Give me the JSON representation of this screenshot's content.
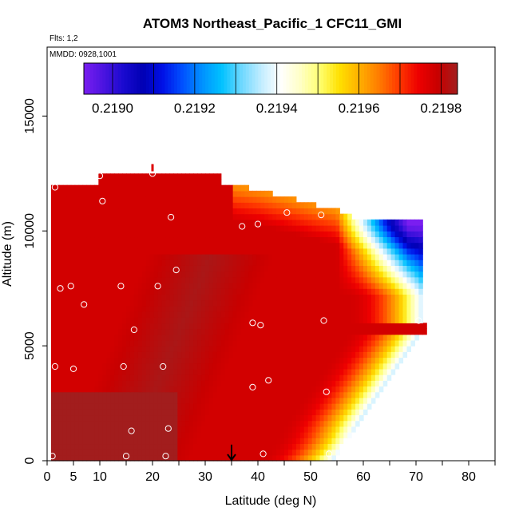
{
  "chart_data": {
    "type": "heatmap",
    "title": "ATOM3 Northeast_Pacific_1 CFC11_GMI",
    "flights_label": "Flts: 1,2",
    "dates_label": "MMDD: 0928,1001",
    "xlabel": "Latitude (deg N)",
    "ylabel": "Altitude (m)",
    "xlim": [
      0,
      85
    ],
    "ylim": [
      0,
      18000
    ],
    "x_ticks": [
      0,
      5,
      10,
      20,
      30,
      40,
      50,
      60,
      70,
      80
    ],
    "x_minor_ticks": [
      15,
      25,
      35,
      45,
      55,
      65,
      75,
      85
    ],
    "y_ticks": [
      0,
      5000,
      10000,
      15000
    ],
    "colorbar": {
      "min": 0.21893,
      "max": 0.21984,
      "tick_values": [
        0.219,
        0.2192,
        0.2194,
        0.2196,
        0.2198
      ],
      "tick_labels": [
        "0.2190",
        "0.2192",
        "0.2194",
        "0.2196",
        "0.2198"
      ],
      "colors": [
        "#7a1ef0",
        "#4b14e0",
        "#1a0ad0",
        "#0000b4",
        "#0010e6",
        "#0050ff",
        "#0090ff",
        "#00c2ff",
        "#6cd8ff",
        "#c0ecff",
        "#ffffff",
        "#ffffc6",
        "#ffff70",
        "#ffe000",
        "#ffb000",
        "#ff7c00",
        "#ff3a00",
        "#ee0000",
        "#c80000",
        "#a21d1d"
      ]
    },
    "field": {
      "background_value": 0.21978,
      "core_value": 0.21983,
      "bottom_left_value": 0.21984,
      "lat_min": 1,
      "lat_south_edge_low": 0.5,
      "surface_edge_latitudes": [
        54,
        56,
        57.5,
        58.5,
        60,
        61.5,
        63,
        64.5,
        66,
        67.5,
        69,
        70.5
      ],
      "surface_edge_altitudes": [
        0,
        500,
        1000,
        1500,
        2000,
        2500,
        3000,
        3500,
        4000,
        4500,
        5000,
        5500,
        6000
      ],
      "upper_edge_latitude": 71,
      "upper_edge_top_altitude": 7000,
      "top_altitude": 12000,
      "top_extension": {
        "lat_from": 10,
        "lat_to": 33,
        "altitude": 12500
      },
      "top_edge_latitudes": [
        35,
        40,
        45,
        50,
        55,
        58
      ],
      "top_edge_altitudes": [
        12000,
        11800,
        11500,
        11200,
        10900,
        10600
      ],
      "low_pocket": {
        "lat_from": 57,
        "lat_to": 70,
        "alt_from": 8000,
        "alt_to": 10900,
        "min_value": 0.21893
      }
    },
    "flight_points": [
      {
        "lat": 1,
        "alt": 200
      },
      {
        "lat": 15,
        "alt": 200
      },
      {
        "lat": 22.5,
        "alt": 200
      },
      {
        "lat": 41,
        "alt": 300
      },
      {
        "lat": 53.5,
        "alt": 300
      },
      {
        "lat": 16,
        "alt": 1300
      },
      {
        "lat": 23,
        "alt": 1400
      },
      {
        "lat": 53,
        "alt": 3000
      },
      {
        "lat": 39,
        "alt": 3200
      },
      {
        "lat": 42,
        "alt": 3500
      },
      {
        "lat": 1.5,
        "alt": 4100
      },
      {
        "lat": 5,
        "alt": 4000
      },
      {
        "lat": 14.5,
        "alt": 4100
      },
      {
        "lat": 22,
        "alt": 4100
      },
      {
        "lat": 16.5,
        "alt": 5700
      },
      {
        "lat": 39,
        "alt": 6000
      },
      {
        "lat": 40.5,
        "alt": 5900
      },
      {
        "lat": 52.5,
        "alt": 6100
      },
      {
        "lat": 70.5,
        "alt": 6100
      },
      {
        "lat": 7,
        "alt": 6800
      },
      {
        "lat": 2.5,
        "alt": 7500
      },
      {
        "lat": 4.5,
        "alt": 7600
      },
      {
        "lat": 14,
        "alt": 7600
      },
      {
        "lat": 21,
        "alt": 7600
      },
      {
        "lat": 24.5,
        "alt": 8300
      },
      {
        "lat": 23.5,
        "alt": 10600
      },
      {
        "lat": 37,
        "alt": 10200
      },
      {
        "lat": 40,
        "alt": 10300
      },
      {
        "lat": 45.5,
        "alt": 10800
      },
      {
        "lat": 52,
        "alt": 10700
      },
      {
        "lat": 68.5,
        "alt": 10900
      },
      {
        "lat": 10.5,
        "alt": 11300
      },
      {
        "lat": 1.5,
        "alt": 11900
      },
      {
        "lat": 10,
        "alt": 12400
      },
      {
        "lat": 20,
        "alt": 12500
      }
    ],
    "markers": [
      {
        "kind": "arrow",
        "lat": 35,
        "alt": 700
      },
      {
        "kind": "red-tick",
        "lat": 20,
        "alt": 12700
      }
    ]
  }
}
